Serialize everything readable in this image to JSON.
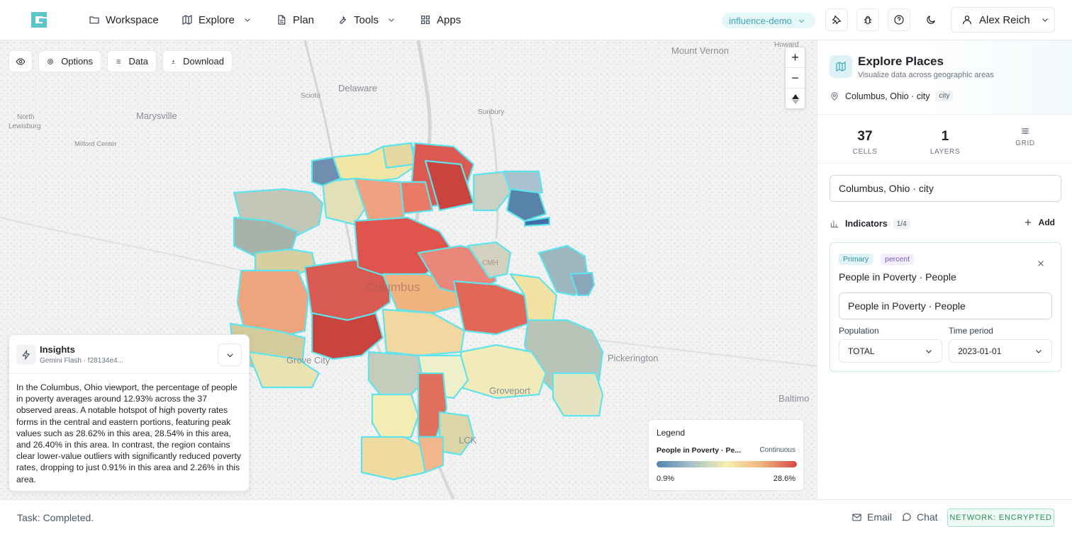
{
  "nav": {
    "items": [
      {
        "label": "Workspace"
      },
      {
        "label": "Explore"
      },
      {
        "label": "Plan"
      },
      {
        "label": "Tools"
      },
      {
        "label": "Apps"
      }
    ],
    "org": "influence-demo",
    "user": "Alex Reich"
  },
  "map_toolbar": {
    "options": "Options",
    "data": "Data",
    "download": "Download"
  },
  "map_labels": {
    "mount_vernon": "Mount Vernon",
    "howard": "Howard",
    "delaware": "Delaware",
    "scioto": "Scioto",
    "marysville": "Marysville",
    "sunbury": "Sunbury",
    "north_lewisburg_1": "North",
    "north_lewisburg_2": "Lewisburg",
    "milford_center": "Milford Center",
    "columbus": "Columbus",
    "cmh": "CMH",
    "grove_city": "Grove City",
    "groveport": "Groveport",
    "pickerington": "Pickerington",
    "baltimore": "Baltimo",
    "lck": "LCK"
  },
  "insights": {
    "title": "Insights",
    "model": "Gemini Flash · f28134e4...",
    "text": "In the Columbus, Ohio viewport, the percentage of people in poverty averages around 12.93% across the 37 observed areas. A notable hotspot of high poverty rates forms in the central and eastern portions, featuring peak values such as 28.62% in this area, 28.54% in this area, and 26.40% in this area. In contrast, the region contains clear lower-value outliers with significantly reduced poverty rates, dropping to just 0.91% in this area and 2.26% in this area."
  },
  "legend": {
    "title": "Legend",
    "name": "People in Poverty · Pe...",
    "type": "Continuous",
    "min": "0.9%",
    "max": "28.6%",
    "colors": [
      "#5182b0",
      "#a7c2c9",
      "#f6efb1",
      "#f0b27e",
      "#d64a46"
    ]
  },
  "panel": {
    "title": "Explore Places",
    "subtitle": "Visualize data across geographic areas",
    "location": "Columbus, Ohio · city",
    "location_tag": "city",
    "stats": {
      "cells_value": "37",
      "cells_label": "CELLS",
      "layers_value": "1",
      "layers_label": "LAYERS",
      "grid_label": "GRID"
    },
    "location_input": "Columbus, Ohio · city",
    "indicators_label": "Indicators",
    "indicators_count": "1/4",
    "add_label": "Add",
    "card": {
      "badge_primary": "Primary",
      "badge_type": "percent",
      "title": "People in Poverty · People",
      "input_value": "People in Poverty · People",
      "population_label": "Population",
      "population_value": "TOTAL",
      "period_label": "Time period",
      "period_value": "2023-01-01"
    }
  },
  "footer": {
    "status": "Task: Completed.",
    "email": "Email",
    "chat": "Chat",
    "network": "NETWORK: ENCRYPTED"
  },
  "colors": {
    "accent": "#3aa7b8",
    "outline": "#5fe3ec"
  }
}
